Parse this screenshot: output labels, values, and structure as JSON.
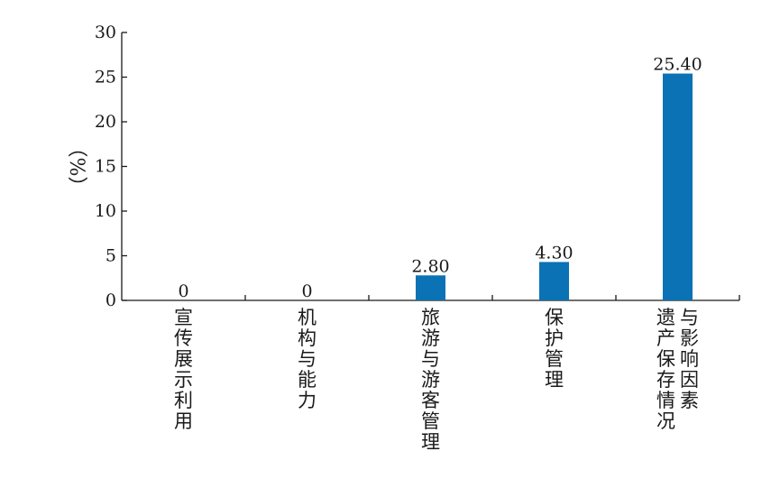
{
  "chart_data": {
    "type": "bar",
    "title": "",
    "xlabel": "",
    "ylabel": "（%）",
    "ylim": [
      0,
      30
    ],
    "yticks": [
      0,
      5,
      10,
      15,
      20,
      25,
      30
    ],
    "categories": [
      "宣传展示利用",
      "机构与能力",
      "旅游与游客管理",
      "保护管理",
      "遗产保存情况与影响因素"
    ],
    "category_lines": [
      [
        "宣传展示利用"
      ],
      [
        "机构与能力"
      ],
      [
        "旅游与游客管理"
      ],
      [
        "保护管理"
      ],
      [
        "与影响因素",
        "遗产保存情况"
      ]
    ],
    "values": [
      0,
      0,
      2.8,
      4.3,
      25.4
    ],
    "value_labels": [
      "0",
      "0",
      "2.80",
      "4.30",
      "25.40"
    ],
    "bar_color": "#0a72b5",
    "grid": false,
    "legend": "none"
  }
}
